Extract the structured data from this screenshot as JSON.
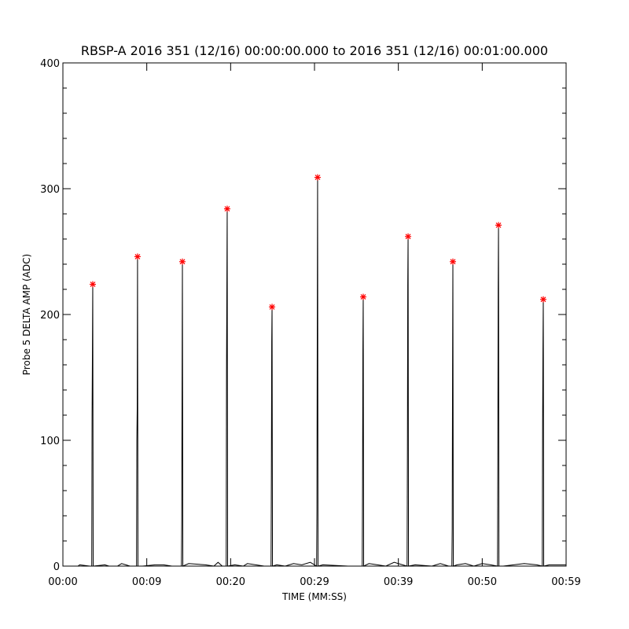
{
  "chart_data": {
    "type": "line",
    "title": "RBSP-A 2016 351 (12/16) 00:00:00.000 to 2016 351 (12/16) 00:01:00.000",
    "xlabel": "TIME (MM:SS)",
    "ylabel": "Probe 5 DELTA AMP (ADC)",
    "xlim": [
      0,
      60
    ],
    "xticks": [
      {
        "value": 0,
        "label": "00:00"
      },
      {
        "value": 10,
        "label": "00:09"
      },
      {
        "value": 20,
        "label": "00:20"
      },
      {
        "value": 30,
        "label": "00:29"
      },
      {
        "value": 40,
        "label": "00:39"
      },
      {
        "value": 50,
        "label": "00:50"
      },
      {
        "value": 60,
        "label": "00:59"
      }
    ],
    "ylim": [
      0,
      400
    ],
    "yticks": [
      0,
      100,
      200,
      300,
      400
    ],
    "yminor_ticks": [
      20,
      40,
      60,
      80,
      120,
      140,
      160,
      180,
      220,
      240,
      260,
      280,
      320,
      340,
      360,
      380
    ],
    "series": [
      {
        "type": "line",
        "color": "#000000",
        "x": [
          0,
          1.8,
          2.0,
          3.2,
          3.44,
          3.48,
          3.52,
          3.56,
          3.61,
          5.0,
          5.5,
          6.5,
          7.0,
          7.5,
          8.0,
          8.78,
          8.82,
          8.86,
          8.9,
          8.95,
          9.5,
          11,
          12,
          13,
          14.13,
          14.17,
          14.21,
          14.25,
          14.3,
          15,
          17,
          18,
          18.5,
          19,
          19.47,
          19.51,
          19.55,
          19.59,
          19.64,
          20.5,
          21.5,
          22,
          24,
          24.82,
          24.86,
          24.9,
          24.94,
          24.99,
          25.5,
          26.5,
          27.5,
          28.5,
          29.5,
          30.25,
          30.29,
          30.33,
          30.37,
          30.42,
          31,
          34,
          35.69,
          35.73,
          35.77,
          35.81,
          35.86,
          36.5,
          37.5,
          38.5,
          39.5,
          40.5,
          41.04,
          41.08,
          41.12,
          41.16,
          41.21,
          42,
          44,
          45,
          46,
          46.38,
          46.42,
          46.46,
          46.5,
          46.55,
          47,
          48,
          49,
          50,
          51,
          51.82,
          51.86,
          51.9,
          51.94,
          51.99,
          52.5,
          55,
          56.5,
          57.16,
          57.2,
          57.24,
          57.28,
          57.33,
          58,
          59,
          60
        ],
        "values": [
          0,
          0,
          1,
          0,
          0,
          120,
          170,
          224,
          0,
          1,
          0,
          0,
          2,
          1,
          0,
          0,
          100,
          125,
          246,
          0,
          0,
          1,
          1,
          0,
          0,
          35,
          145,
          242,
          0,
          2,
          1,
          0,
          3,
          0,
          0,
          155,
          220,
          284,
          0,
          1,
          0,
          2,
          0,
          0,
          75,
          178,
          206,
          0,
          1,
          0,
          2,
          1,
          3,
          0,
          45,
          188,
          309,
          0,
          1,
          0,
          0,
          65,
          172,
          214,
          0,
          2,
          1,
          0,
          3,
          1,
          0,
          92,
          223,
          262,
          0,
          1,
          0,
          2,
          0,
          0,
          30,
          152,
          242,
          0,
          1,
          2,
          0,
          2,
          1,
          0,
          85,
          220,
          271,
          0,
          0,
          2,
          1,
          0,
          112,
          172,
          212,
          0,
          1,
          1,
          1
        ]
      },
      {
        "type": "scatter",
        "marker": "asterisk",
        "color": "#ff0000",
        "x": [
          3.56,
          8.9,
          14.25,
          19.59,
          24.94,
          30.37,
          35.81,
          41.16,
          46.5,
          51.94,
          57.28
        ],
        "values": [
          224,
          246,
          242,
          284,
          206,
          309,
          214,
          262,
          242,
          271,
          212
        ]
      }
    ]
  }
}
